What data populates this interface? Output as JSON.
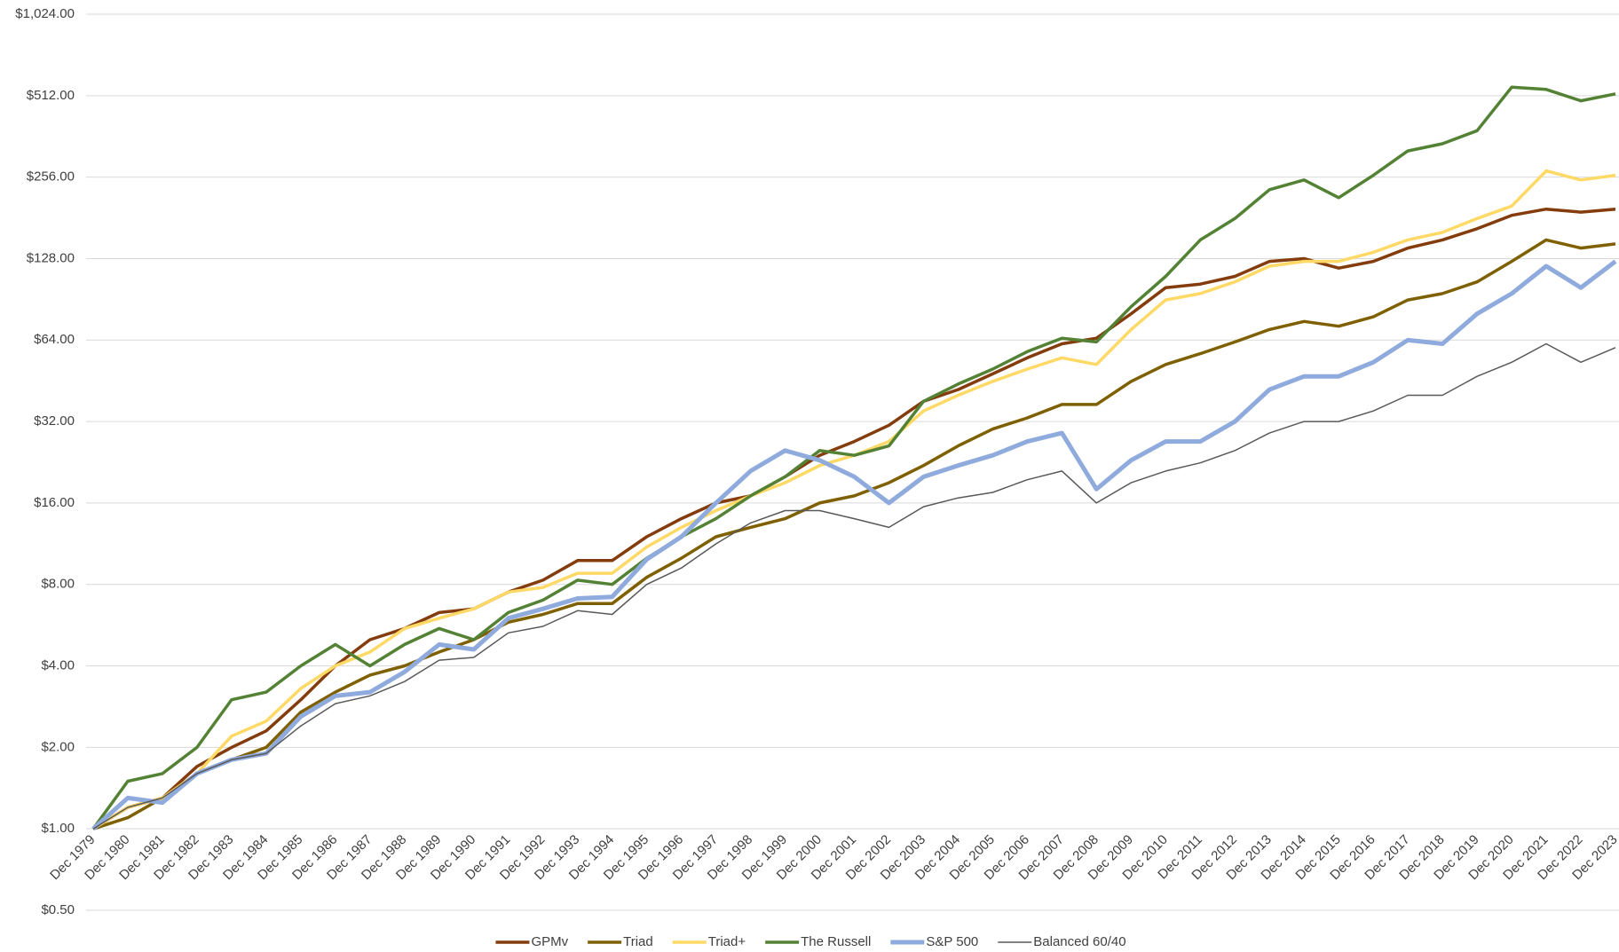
{
  "chart_data": {
    "type": "line",
    "log_scale": true,
    "grid": true,
    "legend": "bottom",
    "x_axis_crosses": 1,
    "categories": [
      "Dec 1979",
      "Dec 1980",
      "Dec 1981",
      "Dec 1982",
      "Dec 1983",
      "Dec 1984",
      "Dec 1985",
      "Dec 1986",
      "Dec 1987",
      "Dec 1988",
      "Dec 1989",
      "Dec 1990",
      "Dec 1991",
      "Dec 1992",
      "Dec 1993",
      "Dec 1994",
      "Dec 1995",
      "Dec 1996",
      "Dec 1997",
      "Dec 1998",
      "Dec 1999",
      "Dec 2000",
      "Dec 2001",
      "Dec 2002",
      "Dec 2003",
      "Dec 2004",
      "Dec 2005",
      "Dec 2006",
      "Dec 2007",
      "Dec 2008",
      "Dec 2009",
      "Dec 2010",
      "Dec 2011",
      "Dec 2012",
      "Dec 2013",
      "Dec 2014",
      "Dec 2015",
      "Dec 2016",
      "Dec 2017",
      "Dec 2018",
      "Dec 2019",
      "Dec 2020",
      "Dec 2021",
      "Dec 2022",
      "Dec 2023"
    ],
    "ylim": [
      0.5,
      1024
    ],
    "yticks": [
      {
        "value": 0.5,
        "label": "$0.50"
      },
      {
        "value": 1,
        "label": "$1.00"
      },
      {
        "value": 2,
        "label": "$2.00"
      },
      {
        "value": 4,
        "label": "$4.00"
      },
      {
        "value": 8,
        "label": "$8.00"
      },
      {
        "value": 16,
        "label": "$16.00"
      },
      {
        "value": 32,
        "label": "$32.00"
      },
      {
        "value": 64,
        "label": "$64.00"
      },
      {
        "value": 128,
        "label": "$128.00"
      },
      {
        "value": 256,
        "label": "$256.00"
      },
      {
        "value": 512,
        "label": "$512.00"
      },
      {
        "value": 1024,
        "label": "$1,024.00"
      }
    ],
    "series": [
      {
        "name": "GPMv",
        "color": "#843c0c",
        "width": 3.5,
        "values": [
          1,
          1.2,
          1.3,
          1.7,
          2.0,
          2.3,
          3.0,
          4.0,
          5.0,
          5.5,
          6.3,
          6.5,
          7.5,
          8.3,
          9.8,
          9.8,
          12,
          14,
          16,
          17,
          20,
          24,
          27,
          31,
          38,
          42,
          48,
          55,
          62,
          65,
          80,
          100,
          103,
          110,
          125,
          128,
          118,
          125,
          140,
          150,
          165,
          185,
          195,
          190,
          195
        ]
      },
      {
        "name": "Triad",
        "color": "#7f6000",
        "width": 3.5,
        "values": [
          1,
          1.1,
          1.3,
          1.6,
          1.8,
          2.0,
          2.7,
          3.2,
          3.7,
          4.0,
          4.5,
          5.0,
          5.8,
          6.2,
          6.8,
          6.8,
          8.5,
          10,
          12,
          13,
          14,
          16,
          17,
          19,
          22,
          26,
          30,
          33,
          37,
          37,
          45,
          52,
          57,
          63,
          70,
          75,
          72,
          78,
          90,
          95,
          105,
          125,
          150,
          140,
          145
        ]
      },
      {
        "name": "Triad+",
        "color": "#ffd966",
        "width": 3.5,
        "values": [
          1,
          1.2,
          1.3,
          1.6,
          2.2,
          2.5,
          3.3,
          4.0,
          4.5,
          5.5,
          6.0,
          6.5,
          7.5,
          7.8,
          8.8,
          8.8,
          11,
          13,
          15,
          17,
          19,
          22,
          24,
          27,
          35,
          40,
          45,
          50,
          55,
          52,
          70,
          90,
          95,
          105,
          120,
          125,
          125,
          135,
          150,
          160,
          180,
          200,
          270,
          250,
          260
        ]
      },
      {
        "name": "The Russell",
        "color": "#548235",
        "width": 3.5,
        "values": [
          1,
          1.5,
          1.6,
          2.0,
          3.0,
          3.2,
          4.0,
          4.8,
          4.0,
          4.8,
          5.5,
          5.0,
          6.3,
          7.0,
          8.3,
          8.0,
          10,
          12,
          14,
          17,
          20,
          25,
          24,
          26,
          38,
          44,
          50,
          58,
          65,
          63,
          85,
          110,
          150,
          180,
          230,
          250,
          215,
          260,
          320,
          340,
          380,
          550,
          540,
          490,
          520
        ]
      },
      {
        "name": "S&P 500",
        "color": "#8faadc",
        "width": 5,
        "values": [
          1,
          1.3,
          1.25,
          1.6,
          1.8,
          1.9,
          2.6,
          3.1,
          3.2,
          3.8,
          4.8,
          4.6,
          6.0,
          6.5,
          7.1,
          7.2,
          9.9,
          12,
          16,
          21,
          25,
          23,
          20,
          16,
          20,
          22,
          24,
          27,
          29,
          18,
          23,
          27,
          27,
          32,
          42,
          47,
          47,
          53,
          64,
          62,
          80,
          95,
          120,
          100,
          125
        ]
      },
      {
        "name": "Balanced 60/40",
        "color": "#595959",
        "width": 1.5,
        "values": [
          1,
          1.2,
          1.3,
          1.6,
          1.8,
          1.9,
          2.4,
          2.9,
          3.1,
          3.5,
          4.2,
          4.3,
          5.3,
          5.6,
          6.4,
          6.2,
          8.0,
          9.2,
          11.3,
          13.5,
          15,
          15,
          14,
          13,
          15.5,
          16.7,
          17.5,
          19.5,
          21,
          16,
          19,
          21,
          22.5,
          25,
          29,
          32,
          32,
          35,
          40,
          40,
          47,
          53,
          62,
          53,
          60
        ]
      }
    ]
  }
}
